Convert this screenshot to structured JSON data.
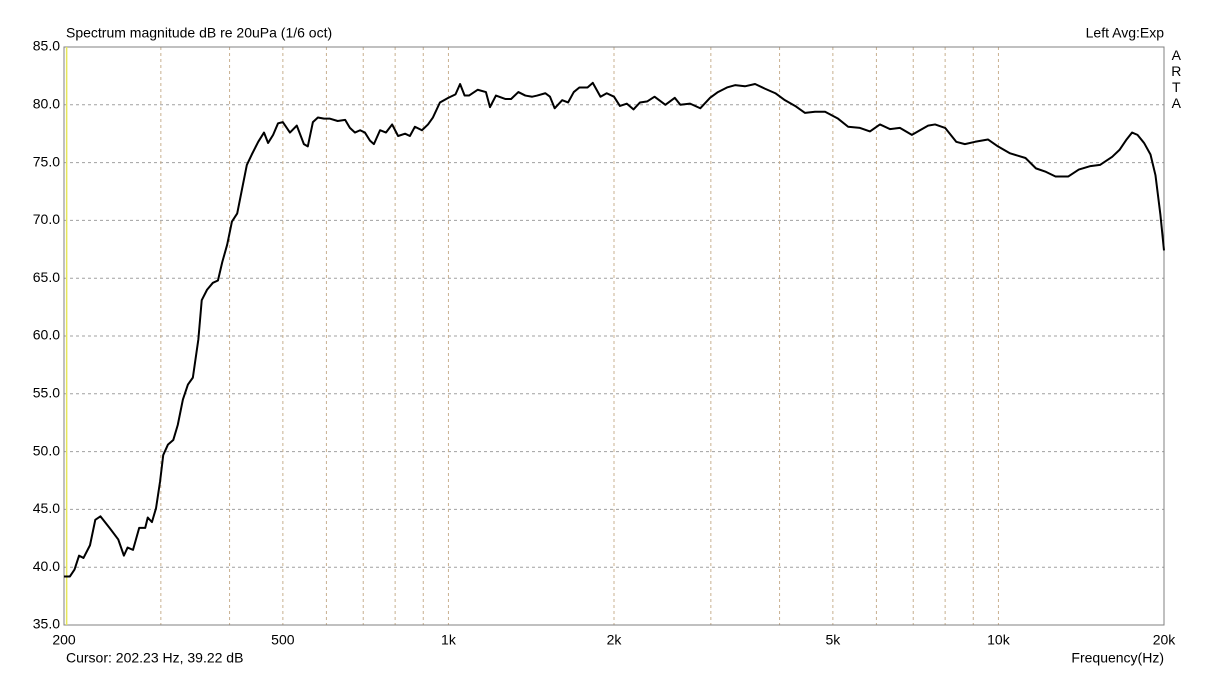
{
  "chart_data": {
    "type": "line",
    "title": "Spectrum magnitude dB re 20uPa (1/6 oct)",
    "channel_info": "Left  Avg:Exp",
    "brand": "ARTA",
    "cursor": {
      "text": "Cursor:   202.23 Hz, 39.22 dB",
      "x": 202.23,
      "color": "#e6e65a"
    },
    "x_label": "Frequency(Hz)",
    "xscale": "log",
    "xlim": [
      200,
      20000
    ],
    "xticks": [
      200,
      500,
      {
        "value": 1000,
        "label": "1k"
      },
      {
        "value": 2000,
        "label": "2k"
      },
      {
        "value": 5000,
        "label": "5k"
      },
      {
        "value": 10000,
        "label": "10k"
      },
      {
        "value": 20000,
        "label": "20k"
      }
    ],
    "xgrid": [
      300,
      400,
      600,
      700,
      800,
      900,
      3000,
      4000,
      6000,
      7000,
      8000,
      9000
    ],
    "ylim": [
      35,
      85
    ],
    "yticks": [
      {
        "value": 35,
        "label": "35.0"
      },
      {
        "value": 40,
        "label": "40.0"
      },
      {
        "value": 45,
        "label": "45.0"
      },
      {
        "value": 50,
        "label": "50.0"
      },
      {
        "value": 55,
        "label": "55.0"
      },
      {
        "value": 60,
        "label": "60.0"
      },
      {
        "value": 65,
        "label": "65.0"
      },
      {
        "value": 70,
        "label": "70.0"
      },
      {
        "value": 75,
        "label": "75.0"
      },
      {
        "value": 80,
        "label": "80.0"
      },
      {
        "value": 85,
        "label": "85.0"
      }
    ],
    "grid": true,
    "color": "#000000",
    "x": [
      200,
      205,
      209,
      213,
      217,
      223,
      228,
      233,
      242,
      251,
      257,
      261,
      267,
      274,
      281,
      284,
      289,
      294,
      299,
      303,
      309,
      316,
      322,
      329,
      336,
      343,
      351,
      356,
      364,
      373,
      381,
      388,
      396,
      404,
      413,
      421,
      430,
      439,
      451,
      462,
      470,
      480,
      490,
      500,
      515,
      530,
      546,
      555,
      567,
      579,
      594,
      609,
      629,
      649,
      662,
      676,
      691,
      705,
      720,
      732,
      751,
      770,
      790,
      810,
      834,
      851,
      869,
      895,
      918,
      937,
      965,
      999,
      1030,
      1050,
      1070,
      1090,
      1130,
      1170,
      1190,
      1220,
      1270,
      1300,
      1340,
      1380,
      1420,
      1450,
      1500,
      1530,
      1560,
      1610,
      1650,
      1690,
      1730,
      1790,
      1830,
      1890,
      1940,
      2000,
      2050,
      2110,
      2170,
      2230,
      2300,
      2370,
      2480,
      2580,
      2640,
      2750,
      2870,
      2990,
      3090,
      3210,
      3320,
      3460,
      3610,
      3760,
      3930,
      4090,
      4270,
      4450,
      4640,
      4840,
      5110,
      5330,
      5600,
      5840,
      6090,
      6350,
      6620,
      6960,
      7200,
      7450,
      7670,
      8000,
      8380,
      8690,
      9070,
      9570,
      9980,
      10500,
      11200,
      11700,
      12200,
      12700,
      13400,
      14000,
      14700,
      15300,
      16100,
      16600,
      17100,
      17500,
      17900,
      18400,
      18900,
      19300,
      19700,
      20000
    ],
    "values": [
      39.2,
      39.2,
      39.8,
      41.0,
      40.8,
      41.9,
      44.1,
      44.4,
      43.4,
      42.4,
      41.0,
      41.7,
      41.5,
      43.4,
      43.4,
      44.3,
      43.9,
      45.1,
      47.4,
      49.7,
      50.6,
      51.0,
      52.3,
      54.5,
      55.8,
      56.4,
      59.7,
      63.1,
      64.0,
      64.6,
      64.8,
      66.4,
      67.9,
      69.9,
      70.6,
      72.6,
      74.8,
      75.7,
      76.8,
      77.6,
      76.7,
      77.4,
      78.4,
      78.5,
      77.6,
      78.2,
      76.6,
      76.4,
      78.5,
      78.9,
      78.8,
      78.8,
      78.6,
      78.7,
      78.0,
      77.6,
      77.8,
      77.6,
      76.9,
      76.6,
      77.8,
      77.6,
      78.3,
      77.3,
      77.5,
      77.3,
      78.1,
      77.8,
      78.3,
      78.9,
      80.2,
      80.6,
      80.9,
      81.8,
      80.8,
      80.8,
      81.3,
      81.1,
      79.8,
      80.8,
      80.5,
      80.5,
      81.1,
      80.8,
      80.7,
      80.8,
      81.0,
      80.7,
      79.7,
      80.4,
      80.2,
      81.1,
      81.5,
      81.5,
      81.9,
      80.7,
      81.0,
      80.7,
      79.9,
      80.1,
      79.6,
      80.2,
      80.3,
      80.7,
      80.0,
      80.6,
      80.0,
      80.1,
      79.7,
      80.6,
      81.1,
      81.5,
      81.7,
      81.6,
      81.8,
      81.4,
      81.0,
      80.4,
      79.9,
      79.3,
      79.4,
      79.4,
      78.8,
      78.1,
      78.0,
      77.7,
      78.3,
      77.9,
      78.0,
      77.4,
      77.8,
      78.2,
      78.3,
      78.0,
      76.8,
      76.6,
      76.8,
      77.0,
      76.4,
      75.8,
      75.4,
      74.5,
      74.2,
      73.8,
      73.8,
      74.4,
      74.7,
      74.8,
      75.5,
      76.1,
      77.0,
      77.6,
      77.4,
      76.7,
      75.7,
      73.9,
      70.5,
      67.4
    ]
  }
}
